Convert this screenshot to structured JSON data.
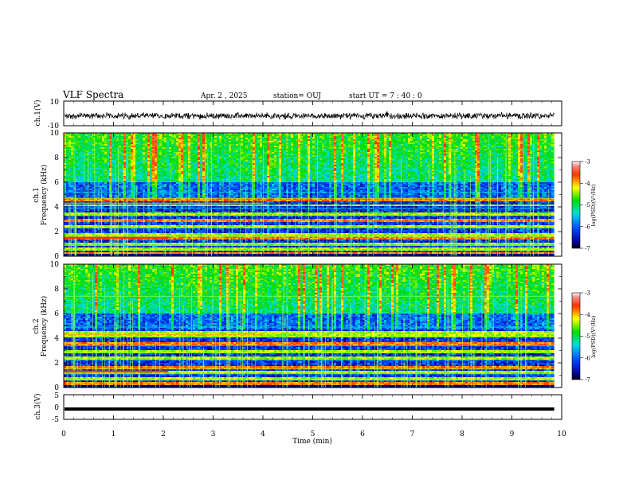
{
  "header": {
    "title": "VLF Spectra",
    "date": "Apr. 2  , 2025",
    "station": "station= OUJ",
    "start_ut": "start  UT =   7 : 40 : 0"
  },
  "chart_data": [
    {
      "type": "line",
      "panel": "ch1-waveform",
      "ylabel": "ch.1(V)",
      "ylim": [
        -10,
        10
      ],
      "y_ticks": [
        "10",
        "-10"
      ],
      "xlim": [
        0,
        10
      ],
      "trace_level": -2,
      "trace_amplitude": 3,
      "color": "#000000"
    },
    {
      "type": "heatmap",
      "panel": "ch1-spectrogram",
      "ylabel": "ch.1\nFrequency  (kHz)",
      "ylabel_line1": "ch.1",
      "ylabel_line2": "Frequency  (kHz)",
      "ylim": [
        0,
        10
      ],
      "y_ticks": [
        "0",
        "2",
        "4",
        "6",
        "8",
        "10"
      ],
      "xlim": [
        0,
        10
      ],
      "x_data_end": 9.85,
      "emission_bands_khz": [
        0.3,
        0.7,
        1.0,
        1.5,
        1.8,
        2.5,
        3.0,
        3.5,
        4.2,
        4.6
      ],
      "colorbar": {
        "label": "log(PSD)(V²/Hz)",
        "range": [
          -7,
          -3
        ],
        "ticks": [
          "-3",
          "-4",
          "-5",
          "-6",
          "-7"
        ]
      }
    },
    {
      "type": "heatmap",
      "panel": "ch2-spectrogram",
      "ylabel": "ch.2\nFrequency  (kHz)",
      "ylabel_line1": "ch.2",
      "ylabel_line2": "Frequency  (kHz)",
      "ylim": [
        0,
        10
      ],
      "y_ticks": [
        "0",
        "2",
        "4",
        "6",
        "8",
        "10"
      ],
      "xlim": [
        0,
        10
      ],
      "x_data_end": 9.85,
      "emission_bands_khz": [
        0.4,
        0.8,
        1.3,
        1.7,
        2.4,
        3.0,
        3.6,
        4.3,
        4.5
      ],
      "colorbar": {
        "label": "log(PSD)(V²/Hz)",
        "range": [
          -7,
          -3
        ],
        "ticks": [
          "-3",
          "-4",
          "-5",
          "-6",
          "-7"
        ]
      }
    },
    {
      "type": "line",
      "panel": "ch3-waveform",
      "ylabel": "ch.3(V)",
      "ylim": [
        -5,
        5
      ],
      "y_ticks": [
        "5",
        "0",
        "-5"
      ],
      "xlim": [
        0,
        10
      ],
      "trace_level": -0.8,
      "trace_amplitude": 0,
      "color": "#000000"
    }
  ],
  "x_axis": {
    "label": "Time  (min)",
    "ticks": [
      "0",
      "1",
      "2",
      "3",
      "4",
      "5",
      "6",
      "7",
      "8",
      "9",
      "10"
    ]
  }
}
